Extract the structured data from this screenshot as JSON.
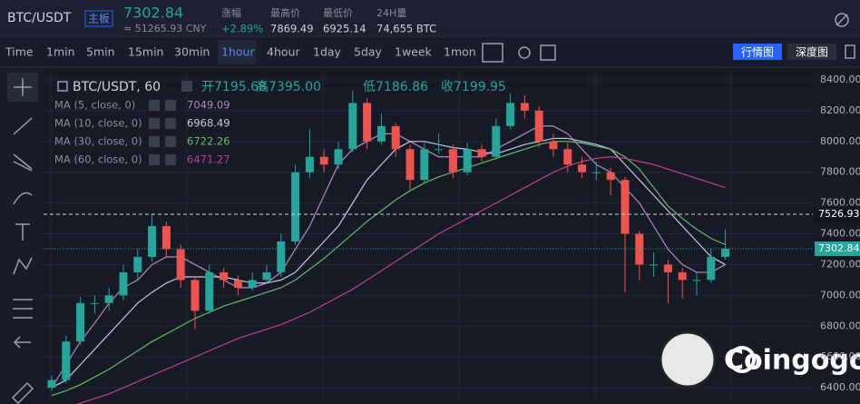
{
  "header": {
    "symbol": "BTC/USDT",
    "board": "主板",
    "price": "7302.84",
    "cny": "≈ 51265.93 CNY",
    "stats": [
      {
        "label": "涨幅",
        "value": "+2.89%"
      },
      {
        "label": "最高价",
        "value": "7869.49"
      },
      {
        "label": "最低价",
        "value": "6925.14"
      },
      {
        "label": "24H量",
        "value": "74,655 BTC"
      }
    ]
  },
  "toolbar": {
    "intervals": [
      "Time",
      "1min",
      "5min",
      "15min",
      "30min",
      "1hour",
      "4hour",
      "1day",
      "5day",
      "1week",
      "1mon"
    ],
    "active_index": 5,
    "views": [
      "行情图",
      "深度图"
    ]
  },
  "legend": {
    "symbol": "BTC/USDT, 60",
    "ohlc": [
      "开7195.68",
      "高7395.00",
      "低7186.86",
      "收7199.95"
    ]
  },
  "watermark": "Coingogo",
  "chart_data": {
    "type": "candlestick",
    "up_color": "#26a69a",
    "down_color": "#ef5350",
    "ylim": [
      6306,
      8459
    ],
    "yticks": [
      {
        "value": 6400,
        "label": "6400.00"
      },
      {
        "value": 6600,
        "label": "6600.00"
      },
      {
        "value": 6800,
        "label": "6800.00"
      },
      {
        "value": 7000,
        "label": "7000.00"
      },
      {
        "value": 7200,
        "label": "7200.00"
      },
      {
        "value": 7400,
        "label": "7400.00"
      },
      {
        "value": 7600,
        "label": "7600.00"
      },
      {
        "value": 7800,
        "label": "7800.00"
      },
      {
        "value": 8000,
        "label": "8000.00"
      },
      {
        "value": 8200,
        "label": "8200.00"
      },
      {
        "value": 8400,
        "label": "8400.00"
      }
    ],
    "grid": true,
    "price_lines": [
      {
        "value": 7526.93,
        "color": "#d1d4dc",
        "style": "dashed"
      },
      {
        "value": 7302.84,
        "color": "#26a69a",
        "style": "dotted"
      }
    ],
    "candles": [
      [
        6400,
        6480,
        6380,
        6450
      ],
      [
        6450,
        6740,
        6430,
        6700
      ],
      [
        6700,
        6990,
        6680,
        6950
      ],
      [
        6950,
        7000,
        6880,
        6950
      ],
      [
        6950,
        7050,
        6900,
        7000
      ],
      [
        7000,
        7200,
        6970,
        7150
      ],
      [
        7150,
        7300,
        7100,
        7250
      ],
      [
        7250,
        7530,
        7220,
        7450
      ],
      [
        7450,
        7480,
        7250,
        7300
      ],
      [
        7300,
        7330,
        7050,
        7100
      ],
      [
        7100,
        7120,
        6780,
        6900
      ],
      [
        6900,
        7200,
        6880,
        7150
      ],
      [
        7150,
        7180,
        7050,
        7100
      ],
      [
        7100,
        7130,
        7000,
        7050
      ],
      [
        7050,
        7150,
        7030,
        7100
      ],
      [
        7100,
        7200,
        7080,
        7150
      ],
      [
        7150,
        7400,
        7120,
        7350
      ],
      [
        7350,
        7850,
        7330,
        7800
      ],
      [
        7800,
        8080,
        7760,
        7900
      ],
      [
        7900,
        7950,
        7800,
        7850
      ],
      [
        7850,
        8000,
        7820,
        7950
      ],
      [
        7950,
        8330,
        7930,
        8250
      ],
      [
        8250,
        8280,
        7950,
        8000
      ],
      [
        8000,
        8180,
        7980,
        8100
      ],
      [
        8100,
        8120,
        7900,
        7950
      ],
      [
        7950,
        7980,
        7690,
        7750
      ],
      [
        7750,
        7990,
        7730,
        7950
      ],
      [
        7950,
        8050,
        7920,
        7950
      ],
      [
        7950,
        7980,
        7760,
        7800
      ],
      [
        7800,
        7990,
        7780,
        7950
      ],
      [
        7950,
        7980,
        7870,
        7900
      ],
      [
        7900,
        8150,
        7880,
        8100
      ],
      [
        8100,
        8310,
        8080,
        8250
      ],
      [
        8250,
        8300,
        8150,
        8200
      ],
      [
        8200,
        8230,
        7960,
        8000
      ],
      [
        8000,
        8050,
        7900,
        7950
      ],
      [
        7950,
        7990,
        7800,
        7850
      ],
      [
        7850,
        7900,
        7760,
        7800
      ],
      [
        7800,
        7870,
        7750,
        7800
      ],
      [
        7800,
        7830,
        7650,
        7750
      ],
      [
        7750,
        7770,
        7020,
        7400
      ],
      [
        7400,
        7420,
        7100,
        7200
      ],
      [
        7200,
        7280,
        7120,
        7200
      ],
      [
        7200,
        7230,
        6950,
        7150
      ],
      [
        7150,
        7180,
        6980,
        7100
      ],
      [
        7100,
        7150,
        7000,
        7100
      ],
      [
        7100,
        7300,
        7080,
        7250
      ],
      [
        7250,
        7430,
        7230,
        7302.84
      ]
    ],
    "series": [
      {
        "name": "MA (5, close, 0)",
        "legend_value": "7049.09",
        "color": "#b388c9",
        "values": [
          6400,
          6550,
          6700,
          6820,
          6950,
          7050,
          7100,
          7200,
          7250,
          7250,
          7200,
          7150,
          7100,
          7050,
          7050,
          7080,
          7150,
          7300,
          7450,
          7650,
          7850,
          7950,
          8000,
          8050,
          8050,
          8000,
          7950,
          7900,
          7900,
          7900,
          7900,
          7950,
          8000,
          8050,
          8100,
          8100,
          8050,
          7950,
          7850,
          7800,
          7700,
          7600,
          7450,
          7300,
          7200,
          7150,
          7150,
          7200
        ]
      },
      {
        "name": "MA (10, close, 0)",
        "legend_value": "6968.49",
        "color": "#c5cbe6",
        "values": [
          6400,
          6450,
          6550,
          6650,
          6750,
          6850,
          6950,
          7020,
          7080,
          7120,
          7120,
          7120,
          7120,
          7100,
          7080,
          7080,
          7100,
          7150,
          7250,
          7350,
          7450,
          7600,
          7750,
          7850,
          7950,
          8000,
          8000,
          7980,
          7960,
          7950,
          7930,
          7920,
          7950,
          7980,
          8000,
          8020,
          8020,
          8000,
          7980,
          7950,
          7850,
          7750,
          7650,
          7550,
          7450,
          7350,
          7250,
          7200
        ]
      },
      {
        "name": "MA (30, close, 0)",
        "legend_value": "6722.26",
        "color": "#66bb6a",
        "values": [
          6350,
          6380,
          6420,
          6470,
          6520,
          6580,
          6640,
          6700,
          6750,
          6800,
          6850,
          6890,
          6930,
          6960,
          6990,
          7020,
          7050,
          7100,
          7170,
          7240,
          7320,
          7400,
          7480,
          7550,
          7620,
          7680,
          7730,
          7770,
          7800,
          7830,
          7860,
          7890,
          7920,
          7950,
          7980,
          8000,
          8000,
          7990,
          7970,
          7950,
          7900,
          7820,
          7700,
          7580,
          7500,
          7430,
          7370,
          7330
        ]
      },
      {
        "name": "MA (60, close, 0)",
        "legend_value": "6471.27",
        "color": "#c2408f",
        "values": [
          6250,
          6270,
          6300,
          6330,
          6360,
          6400,
          6440,
          6480,
          6520,
          6560,
          6600,
          6640,
          6680,
          6720,
          6750,
          6780,
          6810,
          6850,
          6890,
          6940,
          6990,
          7040,
          7100,
          7160,
          7220,
          7280,
          7340,
          7400,
          7450,
          7500,
          7550,
          7600,
          7650,
          7700,
          7750,
          7800,
          7840,
          7870,
          7890,
          7900,
          7890,
          7870,
          7850,
          7820,
          7790,
          7760,
          7730,
          7700
        ]
      }
    ]
  }
}
